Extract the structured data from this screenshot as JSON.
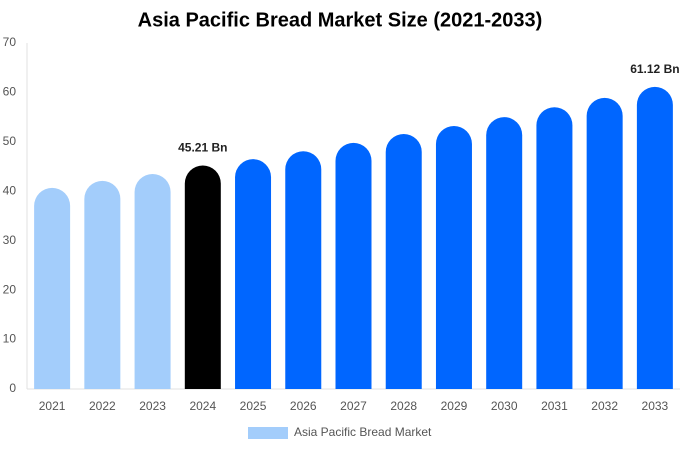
{
  "chart_data": {
    "type": "bar",
    "title": "Asia Pacific Bread Market Size (2021-2033)",
    "categories": [
      "2021",
      "2022",
      "2023",
      "2024",
      "2025",
      "2026",
      "2027",
      "2028",
      "2029",
      "2030",
      "2031",
      "2032",
      "2033"
    ],
    "series": [
      {
        "name": "Asia Pacific Bread Market",
        "color": "#a3cdfb",
        "colors": [
          "#a3cdfb",
          "#a3cdfb",
          "#a3cdfb",
          "#000000",
          "#0066ff",
          "#0066ff",
          "#0066ff",
          "#0066ff",
          "#0066ff",
          "#0066ff",
          "#0066ff",
          "#0066ff",
          "#0066ff"
        ],
        "values": [
          40.7,
          42.1,
          43.5,
          45.21,
          46.5,
          48.1,
          49.8,
          51.6,
          53.2,
          55.0,
          57.0,
          58.9,
          61.12
        ],
        "value_labels": [
          null,
          null,
          null,
          "45.21 Bn",
          null,
          null,
          null,
          null,
          null,
          null,
          null,
          null,
          "61.12 Bn"
        ]
      }
    ],
    "ylim": [
      0,
      70
    ],
    "yticks": [
      0,
      10,
      20,
      30,
      40,
      50,
      60,
      70
    ],
    "grid": false,
    "legend": "bottom"
  }
}
